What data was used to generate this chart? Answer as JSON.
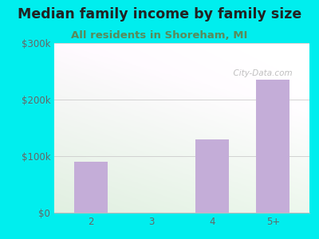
{
  "title": "Median family income by family size",
  "subtitle": "All residents in Shoreham, MI",
  "categories": [
    "2",
    "3",
    "4",
    "5+"
  ],
  "values": [
    90000,
    0,
    130000,
    235000
  ],
  "bar_color": "#c4add8",
  "background_outer": "#00eeee",
  "background_inner_topleft": "#daf0e2",
  "background_inner_topright": "#f0f8f0",
  "background_inner_bottom": "#d0ecd8",
  "title_color": "#222222",
  "subtitle_color": "#5a8a5a",
  "tick_label_color": "#666666",
  "ylim": [
    0,
    300000
  ],
  "yticks": [
    0,
    100000,
    200000,
    300000
  ],
  "ytick_labels": [
    "$0",
    "$100k",
    "$200k",
    "$300k"
  ],
  "watermark": "City-Data.com",
  "title_fontsize": 12.5,
  "subtitle_fontsize": 9.5,
  "tick_fontsize": 8.5,
  "bar_width": 0.55
}
